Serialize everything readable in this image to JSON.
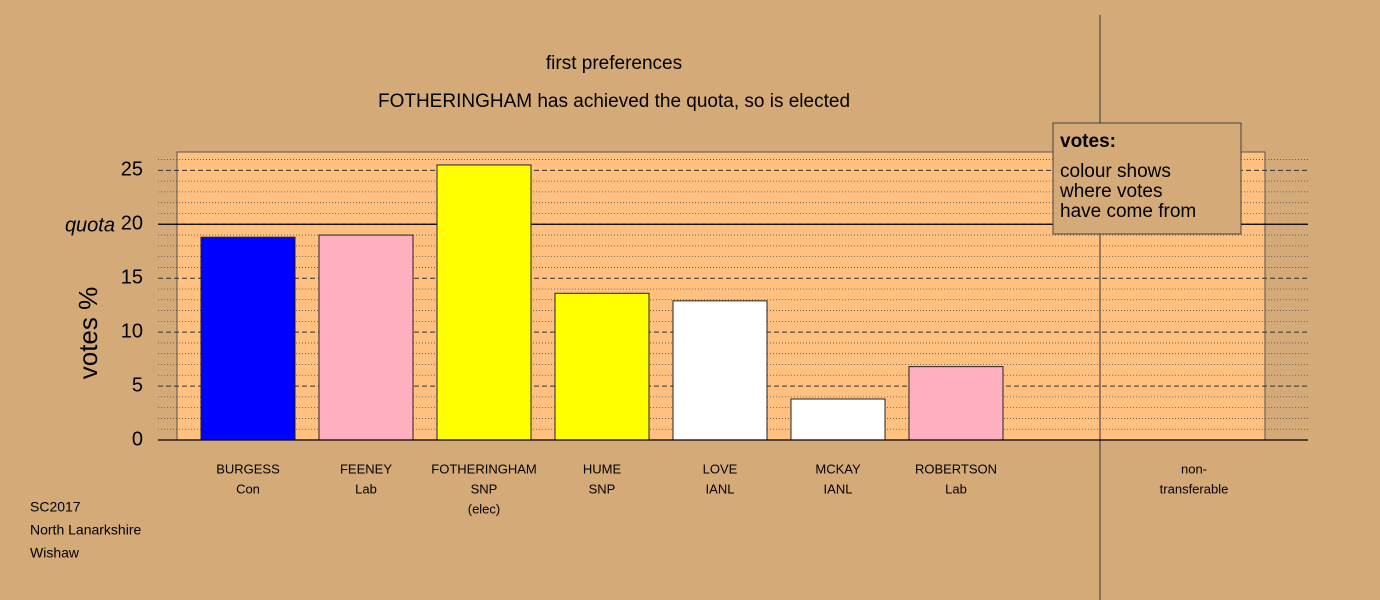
{
  "chart_data": {
    "type": "bar",
    "title": "first preferences",
    "subtitle": "FOTHERINGHAM has achieved the quota, so is elected",
    "y_label": "votes %",
    "categories": [
      [
        "BURGESS",
        "Con"
      ],
      [
        "FEENEY",
        "Lab"
      ],
      [
        "FOTHERINGHAM",
        "SNP",
        "(elec)"
      ],
      [
        "HUME",
        "SNP"
      ],
      [
        "LOVE",
        "IANL"
      ],
      [
        "MCKAY",
        "IANL"
      ],
      [
        "ROBERTSON",
        "Lab"
      ]
    ],
    "values": [
      18.8,
      19.0,
      25.5,
      13.6,
      12.9,
      3.8,
      6.8
    ],
    "colors": [
      "#0000ff",
      "#ffb0c0",
      "#ffff00",
      "#ffff00",
      "#ffffff",
      "#ffffff",
      "#ffb0c0"
    ],
    "non_transferable": [
      "non-",
      "transferable"
    ],
    "quota": {
      "value": 20,
      "label": "quota"
    },
    "ylim": [
      0,
      26.7
    ],
    "yticks": [
      0,
      5,
      10,
      15,
      20,
      25
    ],
    "minor_yticks": [
      1,
      2,
      3,
      4,
      6,
      7,
      8,
      9,
      11,
      12,
      13,
      14,
      16,
      17,
      18,
      19,
      21,
      22,
      23,
      24,
      26
    ],
    "grid": true,
    "legend": {
      "title": "votes:",
      "lines": [
        "colour shows",
        "where votes",
        "have come from"
      ]
    },
    "footer": [
      "SC2017",
      "North Lanarkshire",
      "Wishaw"
    ]
  }
}
